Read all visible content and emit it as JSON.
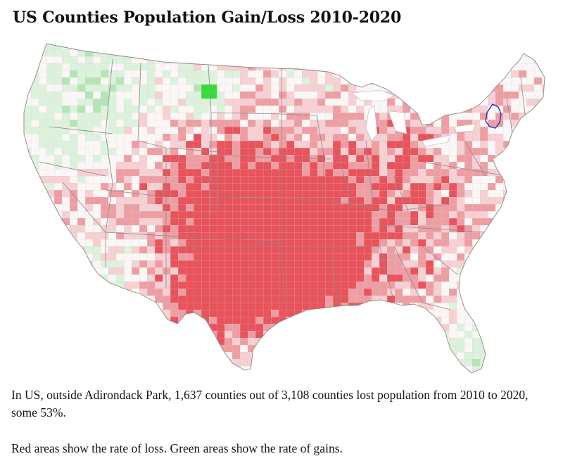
{
  "title": "US Counties Population Gain/Loss 2010-2020",
  "caption": {
    "line1": "In US, outside Adirondack Park, 1,637 counties out of 3,108 counties lost population from 2010 to 2020, some 53%.",
    "line2": "Red areas show the rate of loss. Green areas show the rate of gains."
  },
  "map": {
    "region": "Contiguous United States",
    "unit": "county",
    "highlight": "Adirondack Park",
    "colors": {
      "background": "#ffffff",
      "land_neutral": "#fbf7f7",
      "county_border": "#d2cdcd",
      "state_border": "#8c8888",
      "loss_light": "#f6d0d2",
      "loss_mid": "#ee9ea3",
      "loss_strong": "#e8535c",
      "gain_light": "#dcf2dc",
      "gain_mid": "#b5e4b5",
      "gain_strong": "#33dd33",
      "adirondack_outline": "#1a22cc"
    }
  }
}
